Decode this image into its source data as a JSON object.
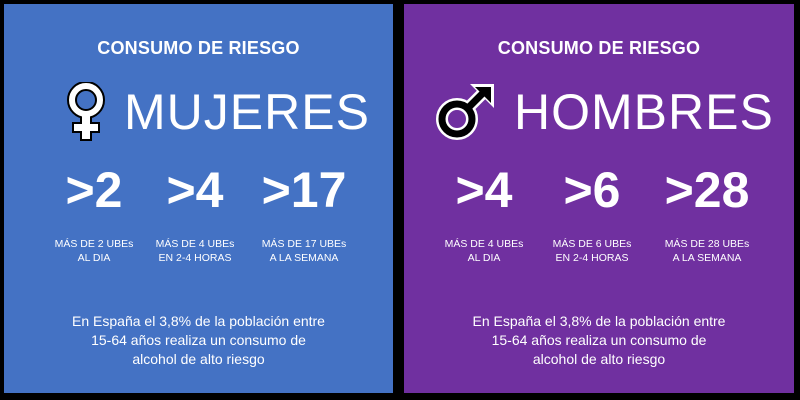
{
  "panels": {
    "women": {
      "title": "CONSUMO DE RIESGO",
      "heading": "MUJERES",
      "icon": "female-symbol-icon",
      "background": "#4472c4",
      "stats": [
        {
          "value": ">2",
          "desc": "MÁS DE 2 UBEs AL DIA"
        },
        {
          "value": ">4",
          "desc": "MÁS DE 4 UBEs EN 2-4 HORAS"
        },
        {
          "value": ">17",
          "desc": "MÁS DE 17 UBEs A LA SEMANA"
        }
      ],
      "footer": {
        "line1": "En España el 3,8% de la población entre",
        "line2": "15-64 años realiza un consumo de",
        "line3": "alcohol de alto riesgo"
      }
    },
    "men": {
      "title": "CONSUMO DE RIESGO",
      "heading": "HOMBRES",
      "icon": "male-symbol-icon",
      "background": "#7030a0",
      "stats": [
        {
          "value": ">4",
          "desc": "MÁS DE 4 UBEs AL DIA"
        },
        {
          "value": ">6",
          "desc": "MÁS DE 6 UBEs EN 2-4 HORAS"
        },
        {
          "value": ">28",
          "desc": "MÁS DE 28 UBEs A LA SEMANA"
        }
      ],
      "footer": {
        "line1": "En España el 3,8% de la población entre",
        "line2": "15-64 años realiza un consumo de",
        "line3": "alcohol de alto riesgo"
      }
    }
  }
}
